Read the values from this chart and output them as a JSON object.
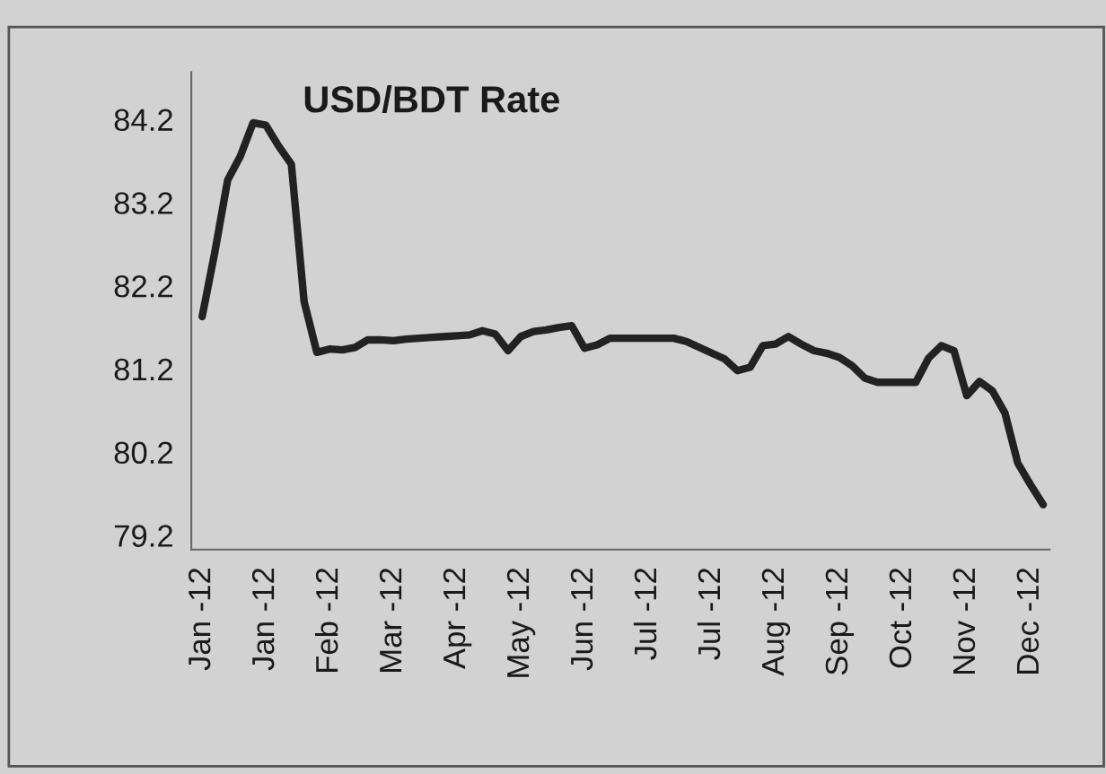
{
  "chart_data": {
    "type": "line",
    "title": "USD/BDT Rate",
    "categories": [
      "Jan -12",
      null,
      null,
      null,
      null,
      "Jan -12",
      null,
      null,
      null,
      null,
      "Feb -12",
      null,
      null,
      null,
      null,
      "Mar -12",
      null,
      null,
      null,
      null,
      "Apr -12",
      null,
      null,
      null,
      null,
      "May -12",
      null,
      null,
      null,
      null,
      "Jun -12",
      null,
      null,
      null,
      null,
      "Jul -12",
      null,
      null,
      null,
      null,
      "Jul -12",
      null,
      null,
      null,
      null,
      "Aug -12",
      null,
      null,
      null,
      null,
      "Sep -12",
      null,
      null,
      null,
      null,
      "Oct -12",
      null,
      null,
      null,
      null,
      "Nov -12",
      null,
      null,
      null,
      null,
      "Dec -12",
      null
    ],
    "series": [
      {
        "color": "#222222",
        "values": [
          81.83,
          82.61,
          83.47,
          83.76,
          84.16,
          84.13,
          83.88,
          83.66,
          82.01,
          81.4,
          81.44,
          81.43,
          81.46,
          81.55,
          81.55,
          81.54,
          81.56,
          81.57,
          81.58,
          81.59,
          81.6,
          81.61,
          81.66,
          81.62,
          81.42,
          81.59,
          81.65,
          81.67,
          81.7,
          81.72,
          81.45,
          81.49,
          81.57,
          81.57,
          81.57,
          81.57,
          81.57,
          81.57,
          81.53,
          81.46,
          81.39,
          81.32,
          81.18,
          81.22,
          81.48,
          81.5,
          81.59,
          81.5,
          81.42,
          81.39,
          81.34,
          81.24,
          81.09,
          81.04,
          81.04,
          81.04,
          81.04,
          81.33,
          81.48,
          81.42,
          80.88,
          81.05,
          80.94,
          80.67,
          80.07,
          79.81,
          79.57
        ]
      }
    ],
    "ylim": [
      79.03,
      84.77
    ],
    "yticks": [
      79.2,
      80.2,
      81.2,
      82.2,
      83.2,
      84.2
    ],
    "grid": false,
    "legend": false,
    "marker": "none",
    "line_style": "solid"
  }
}
